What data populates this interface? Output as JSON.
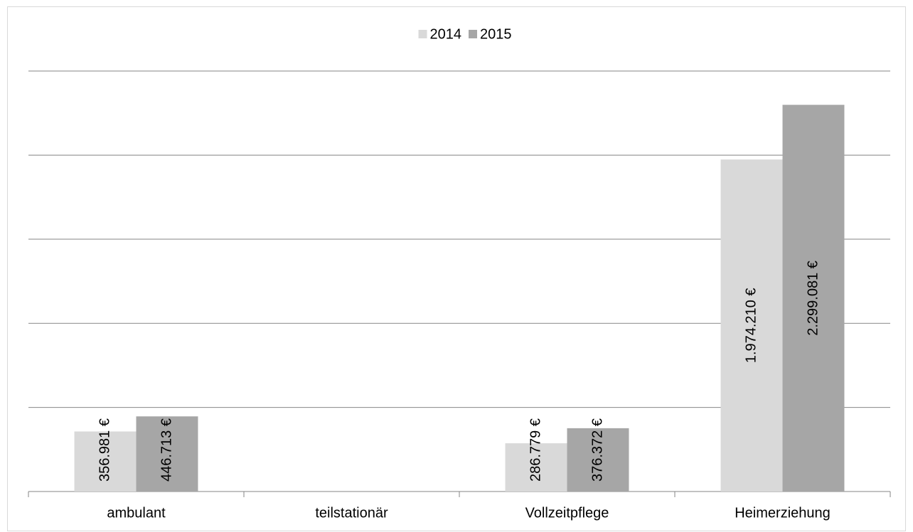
{
  "chart_data": {
    "type": "bar",
    "categories": [
      "ambulant",
      "teilstationär",
      "Vollzeitpflege",
      "Heimerziehung"
    ],
    "series": [
      {
        "name": "2014",
        "color": "#d9d9d9",
        "values": [
          356981,
          null,
          286779,
          1974210
        ],
        "value_labels": [
          "356.981 €",
          null,
          "286.779 €",
          "1.974.210 €"
        ]
      },
      {
        "name": "2015",
        "color": "#a6a6a6",
        "values": [
          446713,
          null,
          376372,
          2299081
        ],
        "value_labels": [
          "446.713 €",
          null,
          "376.372 €",
          "2.299.081 €"
        ]
      }
    ],
    "ylim": [
      0,
      2500000
    ],
    "yticks": [
      0,
      500000,
      1000000,
      1500000,
      2000000,
      2500000
    ],
    "grid": true,
    "legend": "top"
  }
}
